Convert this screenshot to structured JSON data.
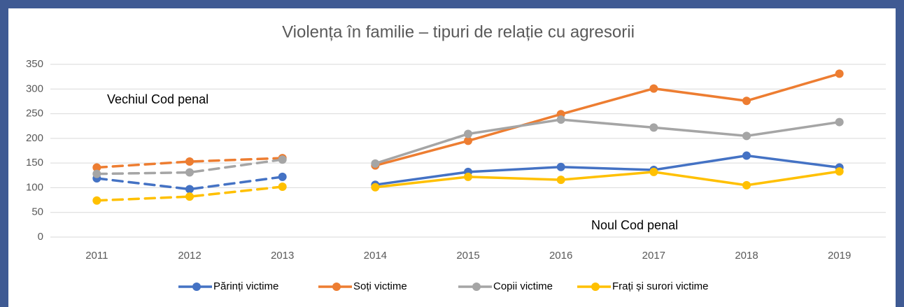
{
  "chart_data": {
    "type": "line",
    "title": "Violența în familie – tipuri de relație cu agresorii",
    "categories": [
      "2011",
      "2012",
      "2013",
      "2014",
      "2015",
      "2016",
      "2017",
      "2018",
      "2019"
    ],
    "series": [
      {
        "name": "Părinți victime",
        "color": "#4472c4",
        "values": [
          119,
          97,
          122,
          106,
          132,
          142,
          136,
          165,
          141
        ]
      },
      {
        "name": "Soți victime",
        "color": "#ed7d31",
        "values": [
          141,
          153,
          160,
          145,
          195,
          249,
          301,
          276,
          331
        ]
      },
      {
        "name": "Copii victime",
        "color": "#a5a5a5",
        "values": [
          128,
          131,
          157,
          149,
          209,
          238,
          222,
          205,
          233
        ]
      },
      {
        "name": "Frați și surori victime",
        "color": "#ffc000",
        "values": [
          74,
          82,
          102,
          101,
          122,
          116,
          132,
          105,
          133
        ]
      }
    ],
    "periods": [
      {
        "label": "Vechiul Cod penal",
        "from": "2011",
        "to": "2013",
        "line": "dashed"
      },
      {
        "label": "Noul Cod penal",
        "from": "2014",
        "to": "2019",
        "line": "solid"
      }
    ],
    "ylim": [
      0,
      350
    ],
    "yticks": [
      0,
      50,
      100,
      150,
      200,
      250,
      300,
      350
    ],
    "grid": true,
    "legend": "bottom"
  }
}
